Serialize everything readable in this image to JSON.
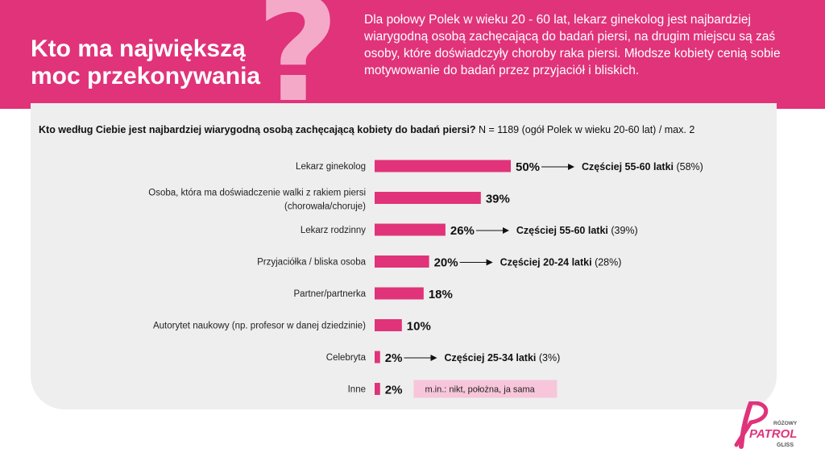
{
  "header": {
    "title": "Kto ma największą moc przekonywania",
    "question_mark": "?",
    "description": "Dla połowy Polek w wieku 20 - 60 lat, lekarz ginekolog jest najbardziej wiarygodną osobą zachęcającą do badań piersi, na drugim miejscu są zaś osoby, które doświadczyły choroby raka piersi. Młodsze kobiety cenią sobie motywowanie do badań przez przyjaciół i bliskich."
  },
  "survey": {
    "question": "Kto według Ciebie jest najbardziej wiarygodną osobą zachęcającą kobiety do badań piersi?",
    "note": " N = 1189 (ogół Polek w wieku 20-60 lat) / max. 2"
  },
  "logo": {
    "top": "RÓŻOWY",
    "main": "PATROL",
    "bottom": "GLISS"
  },
  "colors": {
    "brand": "#e0337a",
    "bar": "#e0337a",
    "panel": "#eeeeee",
    "note_box": "#f7c6da"
  },
  "chart_data": {
    "type": "bar",
    "orientation": "horizontal",
    "categories": [
      [
        "Lekarz ginekolog"
      ],
      [
        "Osoba, która ma doświadczenie walki z rakiem piersi",
        "(chorowała/choruje)"
      ],
      [
        "Lekarz rodzinny"
      ],
      [
        "Przyjaciółka / bliska osoba"
      ],
      [
        "Partner/partnerka"
      ],
      [
        "Autorytet naukowy (np. profesor w danej dziedzinie)"
      ],
      [
        "Celebryta"
      ],
      [
        "Inne"
      ]
    ],
    "values": [
      50,
      39,
      26,
      20,
      18,
      10,
      2,
      2
    ],
    "value_labels": [
      "50%",
      "39%",
      "26%",
      "20%",
      "18%",
      "10%",
      "2%",
      "2%"
    ],
    "annotations": [
      {
        "index": 0,
        "bold": "Częściej 55-60 latki",
        "rest": " (58%)"
      },
      {
        "index": 2,
        "bold": "Częściej 55-60 latki",
        "rest": " (39%)"
      },
      {
        "index": 3,
        "bold": "Częściej 20-24 latki",
        "rest": " (28%)"
      },
      {
        "index": 6,
        "bold": "Częściej 25-34 latki",
        "rest": " (3%)"
      }
    ],
    "note_box": {
      "index": 7,
      "text": "m.in.: nikt, położna, ja sama"
    },
    "xlim": [
      0,
      100
    ],
    "grid": false,
    "legend": "none"
  }
}
